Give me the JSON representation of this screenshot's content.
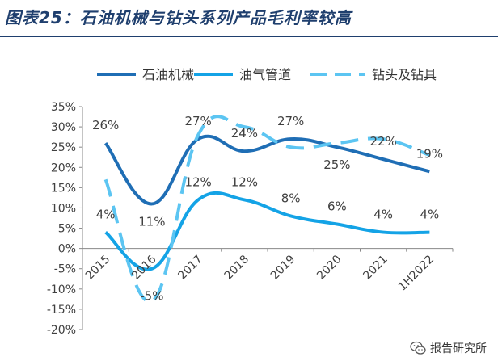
{
  "title": "图表25：石油机械与钻头系列产品毛利率较高",
  "watermark": {
    "text": "报告研究所",
    "icon": "wechat-icon"
  },
  "chart_data": {
    "type": "line",
    "categories": [
      "2015",
      "2016",
      "2017",
      "2018",
      "2019",
      "2020",
      "2021",
      "1H2022"
    ],
    "ylim": [
      -0.2,
      0.35
    ],
    "yticks": [
      0.35,
      0.3,
      0.25,
      0.2,
      0.15,
      0.1,
      0.05,
      0.0,
      -0.05,
      -0.1,
      -0.15,
      -0.2
    ],
    "ytick_labels": [
      "35%",
      "30%",
      "25%",
      "20%",
      "15%",
      "10%",
      "5%",
      "0%",
      "-5%",
      "-10%",
      "-15%",
      "-20%"
    ],
    "legend_position": "top",
    "series": [
      {
        "name": "石油机械",
        "color": "#1f6eb5",
        "dash": "solid",
        "values": [
          0.26,
          0.11,
          0.27,
          0.24,
          0.27,
          0.25,
          0.22,
          0.19
        ],
        "labels": [
          "26%",
          "11%",
          "27%",
          "24%",
          "27%",
          "25%",
          "22%",
          "19%"
        ]
      },
      {
        "name": "油气管道",
        "color": "#14a3e6",
        "dash": "solid",
        "values": [
          0.04,
          -0.05,
          0.12,
          0.12,
          0.08,
          0.06,
          0.04,
          0.04
        ],
        "labels": [
          "4%",
          "-5%",
          "12%",
          "12%",
          "8%",
          "6%",
          "4%",
          "4%"
        ]
      },
      {
        "name": "钻头及钻具",
        "color": "#5cc5f2",
        "dash": "dashed",
        "values": [
          0.17,
          -0.13,
          0.28,
          0.3,
          0.25,
          0.26,
          0.27,
          0.23
        ],
        "labels": []
      }
    ]
  }
}
